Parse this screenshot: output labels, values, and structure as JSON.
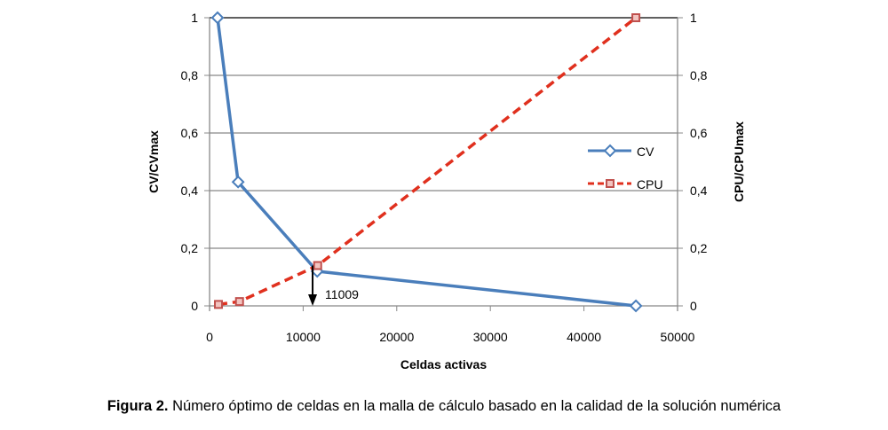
{
  "chart_data": {
    "type": "line",
    "xlabel": "Celdas activas",
    "ylabel": "CV/CVmax",
    "y2label": "CPU/CPUmax",
    "xlim": [
      0,
      50000
    ],
    "ylim": [
      0,
      1
    ],
    "y2lim": [
      0,
      1
    ],
    "xticks": [
      "0",
      "10000",
      "20000",
      "30000",
      "40000",
      "50000"
    ],
    "yticks": [
      "0",
      "0,2",
      "0,4",
      "0,6",
      "0,8",
      "1"
    ],
    "y2ticks": [
      "0",
      "0,2",
      "0,4",
      "0,6",
      "0,8",
      "1"
    ],
    "grid": true,
    "legend_position": "right",
    "series": [
      {
        "name": "CV",
        "color": "#4a7ebb",
        "style": "solid",
        "marker": "diamond",
        "axis": "left",
        "x": [
          850,
          3050,
          11500,
          45550
        ],
        "y": [
          1,
          0.43,
          0.12,
          0
        ]
      },
      {
        "name": "CPU",
        "color": "#e0301e",
        "style": "dashed",
        "marker": "square",
        "axis": "right",
        "x": [
          950,
          3200,
          11550,
          45550
        ],
        "y": [
          0.005,
          0.015,
          0.14,
          1
        ]
      }
    ],
    "annotations": [
      {
        "text": "11009",
        "x": 11009,
        "y_from": 0.14,
        "y_to": 0,
        "type": "arrow-down"
      }
    ]
  },
  "caption": {
    "label": "Figura 2.",
    "text": " Número óptimo de celdas en la malla de cálculo basado en la calidad de la solución numérica"
  }
}
